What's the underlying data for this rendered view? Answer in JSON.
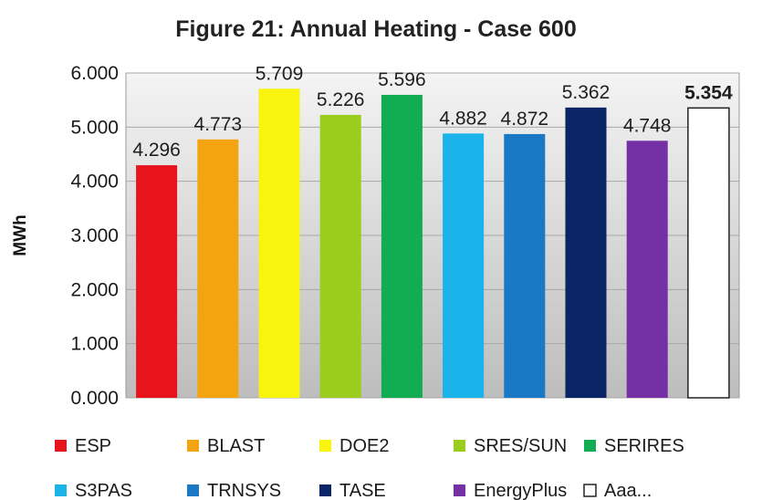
{
  "chart_data": {
    "type": "bar",
    "title": "Figure 21: Annual Heating - Case 600",
    "xlabel": "",
    "ylabel": "MWh",
    "ylim": [
      0,
      6
    ],
    "yticks": [
      "0.000",
      "1.000",
      "2.000",
      "3.000",
      "4.000",
      "5.000",
      "6.000"
    ],
    "grid": true,
    "legend_position": "bottom",
    "categories": [
      "ESP",
      "BLAST",
      "DOE2",
      "SRES/SUN",
      "SERIRES",
      "S3PAS",
      "TRNSYS",
      "TASE",
      "EnergyPlus",
      "Aaa..."
    ],
    "values": [
      4.296,
      4.773,
      5.709,
      5.226,
      5.596,
      4.882,
      4.872,
      5.362,
      4.748,
      5.354
    ],
    "value_labels": [
      "4.296",
      "4.773",
      "5.709",
      "5.226",
      "5.596",
      "4.882",
      "4.872",
      "5.362",
      "4.748",
      "5.354"
    ],
    "highlight_index": 9,
    "colors": [
      "#e8141b",
      "#f5a411",
      "#f8f40e",
      "#9acd1e",
      "#12ad53",
      "#1ab4ea",
      "#1a78c4",
      "#0b2466",
      "#7630a6",
      "#ffffff"
    ],
    "plot_background": "#cfcfcf"
  }
}
